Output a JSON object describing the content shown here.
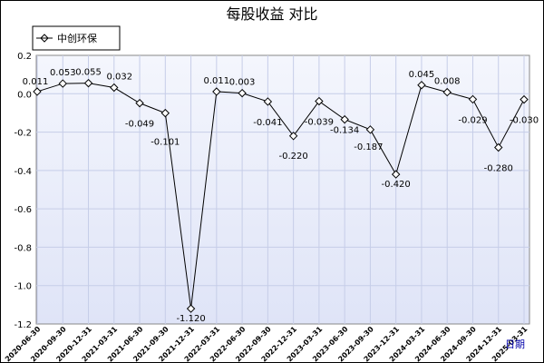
{
  "chart_data": {
    "type": "line",
    "title": "每股收益  对比",
    "xlabel": "日期",
    "ylabel": "",
    "ylim": [
      -1.2,
      0.2
    ],
    "yticks": [
      0.2,
      0.0,
      -0.2,
      -0.4,
      -0.6,
      -0.8,
      -1.0,
      -1.2
    ],
    "grid": true,
    "legend": "top-left",
    "categories": [
      "2020-06-30",
      "2020-09-30",
      "2020-12-31",
      "2021-03-31",
      "2021-06-30",
      "2021-09-30",
      "2021-12-31",
      "2022-03-31",
      "2022-06-30",
      "2022-09-30",
      "2022-12-31",
      "2023-03-31",
      "2023-06-30",
      "2023-09-30",
      "2023-12-31",
      "2024-03-31",
      "2024-06-30",
      "2024-09-30",
      "2024-12-31",
      "2025-03-31"
    ],
    "series": [
      {
        "name": "中创环保",
        "values": [
          0.011,
          0.053,
          0.055,
          0.032,
          -0.049,
          -0.101,
          -1.12,
          0.011,
          0.003,
          -0.041,
          -0.22,
          -0.039,
          -0.134,
          -0.187,
          -0.42,
          0.045,
          0.008,
          -0.029,
          -0.28,
          -0.03
        ],
        "labels": [
          "0.011",
          "0.053",
          "0.055",
          "0.032",
          "-0.049",
          "-0.101",
          "-1.120",
          "0.011",
          "0.003",
          "-0.041",
          "-0.220",
          "-0.039",
          "-0.134",
          "-0.187",
          "-0.420",
          "0.045",
          "0.008",
          "-0.029",
          "-0.280",
          "-0.030"
        ]
      }
    ],
    "colors": {
      "plot_bg_top": "#f4f6fd",
      "plot_bg_bottom": "#dfe4f7",
      "grid": "#c6cde8",
      "line": "#000000"
    }
  }
}
